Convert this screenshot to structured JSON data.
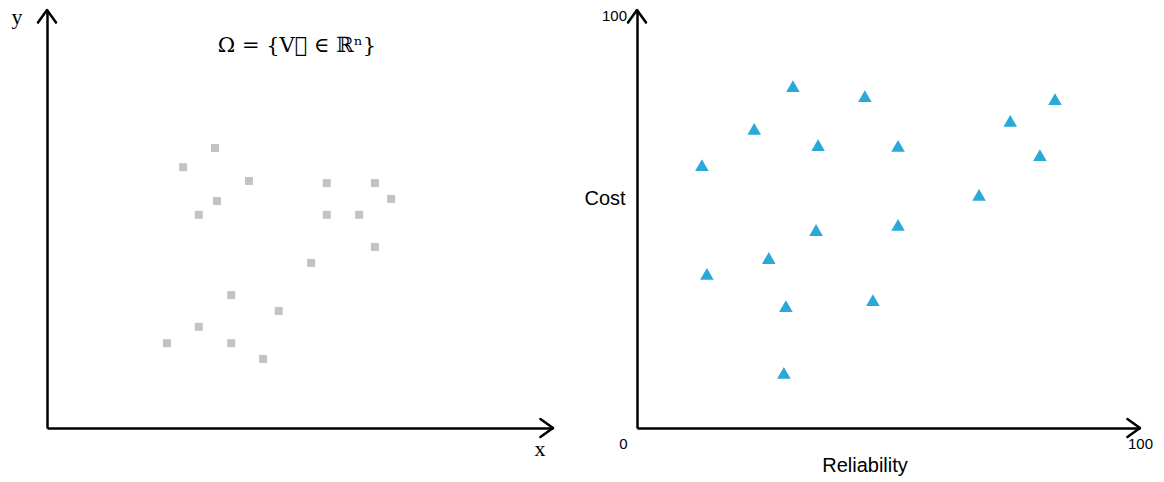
{
  "chart_data": [
    {
      "type": "scatter",
      "annotations": [
        "Ω = {V⃗ ∈ ℝⁿ}"
      ],
      "x_label": "x",
      "y_label": "y",
      "xlim": [
        0,
        100
      ],
      "ylim": [
        0,
        100
      ],
      "tick_labels": false,
      "marker": "square",
      "color": "#c3c3c3",
      "x": [
        26.9,
        33.2,
        39.9,
        30.0,
        33.6,
        55.3,
        64.8,
        68.0,
        55.3,
        61.7,
        64.8,
        52.2,
        36.4,
        45.8,
        30.0,
        23.7,
        36.4,
        42.7
      ],
      "values": [
        62.4,
        67.0,
        59.1,
        51.0,
        54.3,
        58.6,
        58.6,
        54.8,
        51.0,
        51.0,
        43.3,
        39.5,
        31.8,
        28.0,
        24.2,
        20.3,
        20.3,
        16.5
      ]
    },
    {
      "type": "scatter",
      "x_label": "Reliability",
      "y_label": "Cost",
      "xlim": [
        0,
        100
      ],
      "ylim": [
        0,
        100
      ],
      "xticks": [
        0,
        100
      ],
      "yticks": [
        100
      ],
      "marker": "triangle",
      "color": "#2aa9d8",
      "x": [
        12.9,
        13.9,
        23.3,
        31.0,
        36.0,
        26.2,
        35.6,
        29.6,
        29.2,
        45.3,
        51.9,
        51.9,
        46.9,
        68.0,
        74.2,
        80.1,
        83.1
      ],
      "values": [
        62.4,
        36.4,
        71.1,
        81.3,
        67.2,
        40.2,
        46.9,
        28.7,
        12.7,
        78.9,
        67.0,
        48.1,
        30.1,
        55.3,
        73.0,
        64.8,
        78.2
      ]
    }
  ]
}
